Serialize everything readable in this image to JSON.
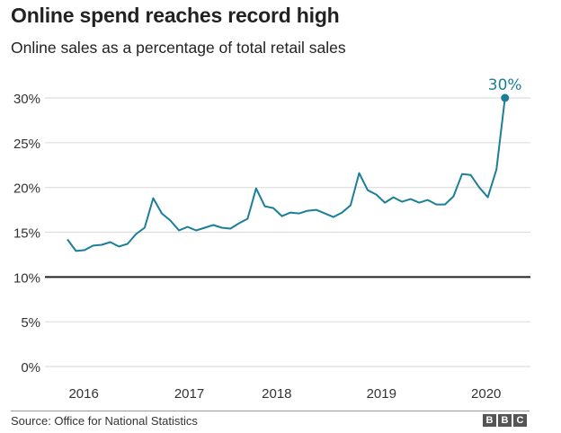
{
  "header": {
    "title": "Online spend reaches record high",
    "subtitle": "Online sales as a percentage of total retail sales"
  },
  "footer": {
    "source": "Source: Office for National Statistics",
    "logo_letters": [
      "B",
      "B",
      "C"
    ]
  },
  "colors": {
    "line": "#1b7f99",
    "grid": "#dddddd",
    "baseline": "#222222",
    "text": "#333333"
  },
  "chart_data": {
    "type": "line",
    "title": "Online spend reaches record high",
    "subtitle": "Online sales as a percentage of total retail sales",
    "xlabel": "",
    "ylabel": "",
    "ylim": [
      0,
      30
    ],
    "xlim": [
      0,
      51
    ],
    "yticks": [
      0,
      5,
      10,
      15,
      20,
      25,
      30
    ],
    "ytick_labels": [
      "0%",
      "5%",
      "10%",
      "15%",
      "20%",
      "25%",
      "30%"
    ],
    "baseline_value": 10,
    "xticks": [
      {
        "label": "2016",
        "x": 1.9
      },
      {
        "label": "2017",
        "x": 14.2
      },
      {
        "label": "2018",
        "x": 24.4
      },
      {
        "label": "2019",
        "x": 36.6
      },
      {
        "label": "2020",
        "x": 48.8
      }
    ],
    "grid": true,
    "legend": "none",
    "series": [
      {
        "name": "Online sales share (%)",
        "values": [
          14.2,
          12.9,
          13.0,
          13.5,
          13.6,
          13.9,
          13.4,
          13.7,
          14.8,
          15.5,
          18.8,
          17.1,
          16.3,
          15.2,
          15.6,
          15.2,
          15.5,
          15.8,
          15.5,
          15.4,
          16.0,
          16.5,
          19.9,
          17.9,
          17.7,
          16.8,
          17.2,
          17.1,
          17.4,
          17.5,
          17.1,
          16.7,
          17.2,
          18.0,
          21.6,
          19.7,
          19.2,
          18.3,
          18.9,
          18.4,
          18.7,
          18.3,
          18.6,
          18.1,
          18.1,
          19.0,
          21.5,
          21.4,
          20.0,
          18.9,
          22.0,
          30.0
        ]
      }
    ],
    "annotations": [
      {
        "label": "30%",
        "x": 51,
        "y": 30.0
      }
    ]
  }
}
